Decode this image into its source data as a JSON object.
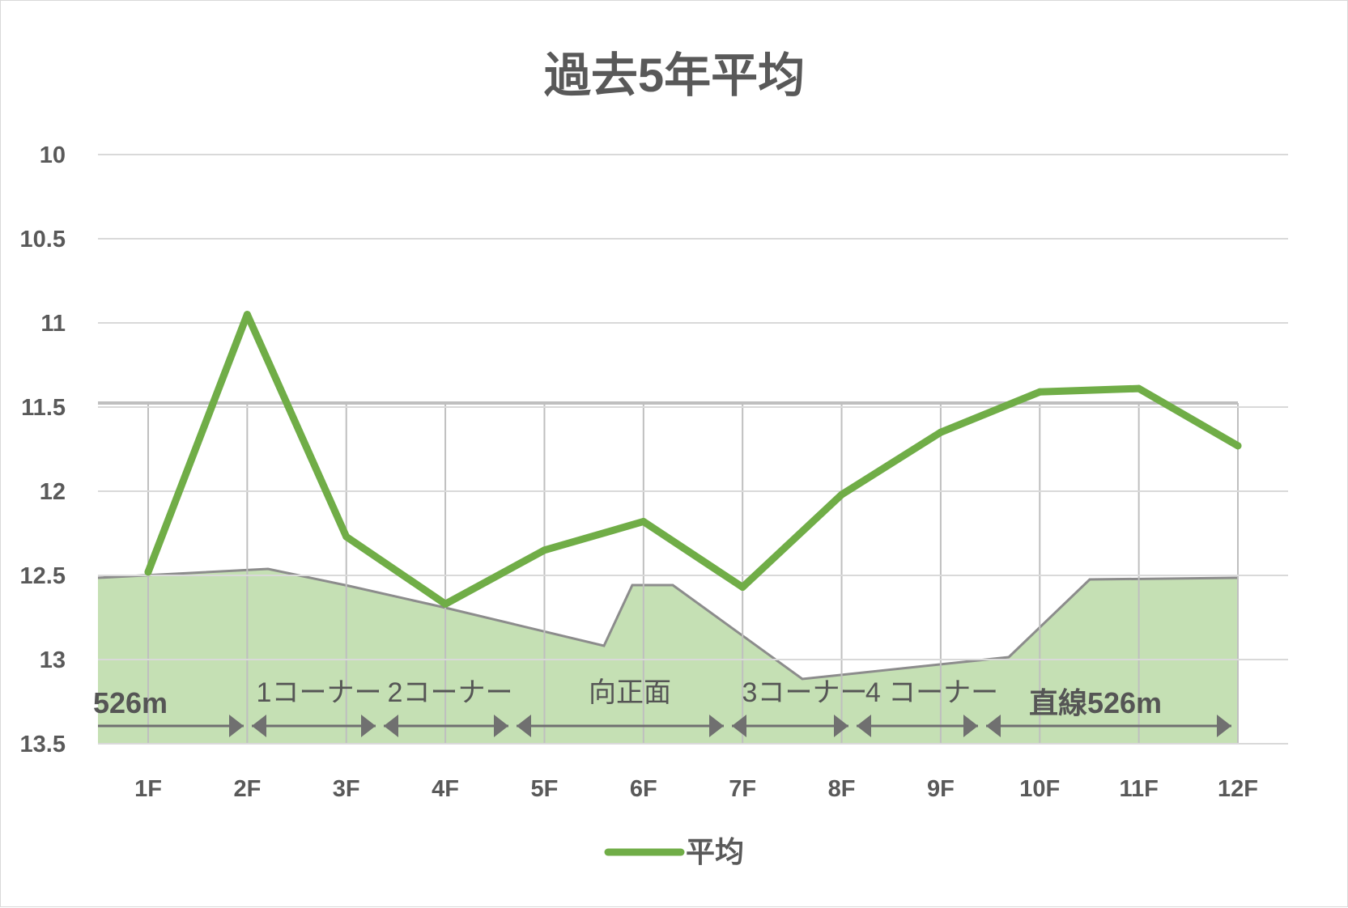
{
  "chart_data": {
    "type": "line",
    "title": "過去5年平均",
    "categories": [
      "1F",
      "2F",
      "3F",
      "4F",
      "5F",
      "6F",
      "7F",
      "8F",
      "9F",
      "10F",
      "11F",
      "12F"
    ],
    "y_ticks": [
      "10",
      "10.5",
      "11",
      "11.5",
      "12",
      "12.5",
      "13",
      "13.5"
    ],
    "ylim": [
      10,
      13.5
    ],
    "y_inverted": true,
    "grid": true,
    "legend_position": "bottom",
    "series": [
      {
        "name": "平均",
        "color": "#70ad47",
        "values": [
          12.48,
          10.95,
          12.27,
          12.67,
          12.35,
          12.18,
          12.57,
          12.02,
          11.65,
          11.41,
          11.39,
          11.73
        ]
      }
    ],
    "course_sections": [
      {
        "label": "526m",
        "style": "bold"
      },
      {
        "label": "1コーナー",
        "style": "normal"
      },
      {
        "label": "2コーナー",
        "style": "normal"
      },
      {
        "label": "向正面",
        "style": "normal"
      },
      {
        "label": "3コーナー",
        "style": "normal"
      },
      {
        "label": "4 コーナー",
        "style": "normal"
      },
      {
        "label": "直線526m",
        "style": "bold"
      }
    ],
    "colors": {
      "line": "#70ad47",
      "profile_fill": "#c5e0b4",
      "profile_edge": "#8c8c8c",
      "grid": "#d9d9d9",
      "arrow": "#707070"
    }
  }
}
